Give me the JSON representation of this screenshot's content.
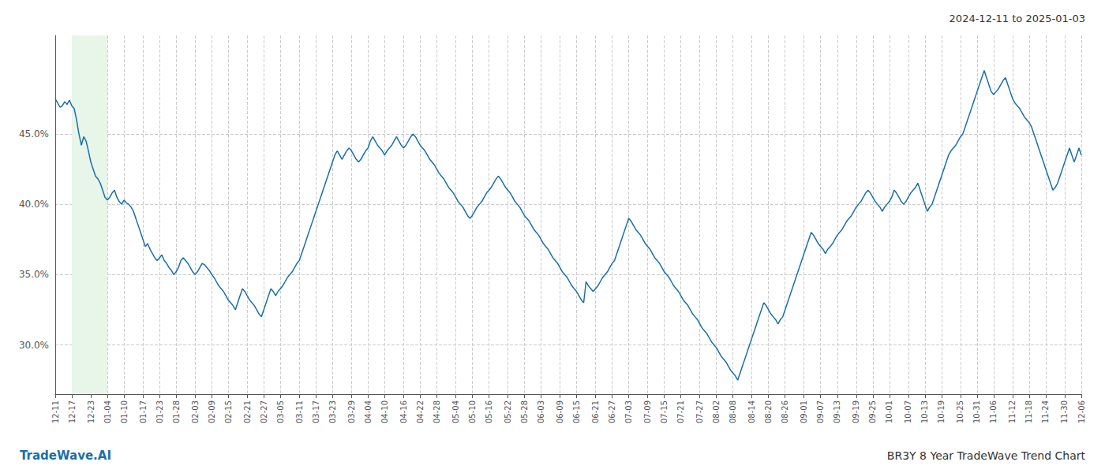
{
  "chart_data": {
    "type": "line",
    "title": "BR3Y 8 Year TradeWave Trend Chart",
    "subtitle": "2024-12-11 to 2025-01-03",
    "annotations": [
      {
        "text": "TradeWave.AI",
        "color": "#1a6fa8"
      }
    ],
    "color": "#1a6fa8",
    "highlight": {
      "from": "12-17",
      "to": "01-04",
      "color": "#e8f5e9"
    },
    "ylim": [
      26.5,
      52.0
    ],
    "yticks": [
      {
        "value": 30.0,
        "label": "30.0%"
      },
      {
        "value": 35.0,
        "label": "35.0%"
      },
      {
        "value": 40.0,
        "label": "40.0%"
      },
      {
        "value": 45.0,
        "label": "45.0%"
      }
    ],
    "grid": true,
    "categories": [
      "12-11",
      null,
      null,
      null,
      null,
      null,
      null,
      "12-17",
      null,
      null,
      null,
      null,
      null,
      null,
      null,
      "12-23",
      null,
      null,
      null,
      null,
      null,
      null,
      "01-04",
      null,
      null,
      null,
      null,
      null,
      null,
      "01-10",
      null,
      null,
      null,
      null,
      null,
      null,
      null,
      "01-17",
      null,
      null,
      null,
      null,
      null,
      null,
      "01-23",
      null,
      null,
      null,
      null,
      null,
      null,
      "01-28",
      null,
      null,
      null,
      null,
      null,
      null,
      null,
      "02-03",
      null,
      null,
      null,
      null,
      null,
      null,
      "02-09",
      null,
      null,
      null,
      null,
      null,
      null,
      "02-15",
      null,
      null,
      null,
      null,
      null,
      null,
      null,
      "02-21",
      null,
      null,
      null,
      null,
      null,
      null,
      "02-27",
      null,
      null,
      null,
      null,
      null,
      null,
      "03-05",
      null,
      null,
      null,
      null,
      null,
      null,
      null,
      "03-11",
      null,
      null,
      null,
      null,
      null,
      null,
      "03-17",
      null,
      null,
      null,
      null,
      null,
      null,
      "03-23",
      null,
      null,
      null,
      null,
      null,
      null,
      null,
      "03-29",
      null,
      null,
      null,
      null,
      null,
      null,
      "04-04",
      null,
      null,
      null,
      null,
      null,
      null,
      "04-10",
      null,
      null,
      null,
      null,
      null,
      null,
      null,
      "04-16",
      null,
      null,
      null,
      null,
      null,
      null,
      "04-22",
      null,
      null,
      null,
      null,
      null,
      null,
      "04-28",
      null,
      null,
      null,
      null,
      null,
      null,
      null,
      "05-04",
      null,
      null,
      null,
      null,
      null,
      null,
      "05-10",
      null,
      null,
      null,
      null,
      null,
      null,
      "05-16",
      null,
      null,
      null,
      null,
      null,
      null,
      null,
      "05-22",
      null,
      null,
      null,
      null,
      null,
      null,
      "05-28",
      null,
      null,
      null,
      null,
      null,
      null,
      "06-03",
      null,
      null,
      null,
      null,
      null,
      null,
      null,
      "06-09",
      null,
      null,
      null,
      null,
      null,
      null,
      "06-15",
      null,
      null,
      null,
      null,
      null,
      null,
      null,
      "06-21",
      null,
      null,
      null,
      null,
      null,
      null,
      "06-27",
      null,
      null,
      null,
      null,
      null,
      null,
      "07-03",
      null,
      null,
      null,
      null,
      null,
      null,
      null,
      "07-09",
      null,
      null,
      null,
      null,
      null,
      null,
      "07-15",
      null,
      null,
      null,
      null,
      null,
      null,
      "07-21",
      null,
      null,
      null,
      null,
      null,
      null,
      null,
      "07-27",
      null,
      null,
      null,
      null,
      null,
      null,
      "08-02",
      null,
      null,
      null,
      null,
      null,
      null,
      "08-08",
      null,
      null,
      null,
      null,
      null,
      null,
      null,
      "08-14",
      null,
      null,
      null,
      null,
      null,
      null,
      "08-20",
      null,
      null,
      null,
      null,
      null,
      null,
      "08-26",
      null,
      null,
      null,
      null,
      null,
      null,
      null,
      "09-01",
      null,
      null,
      null,
      null,
      null,
      null,
      "09-07",
      null,
      null,
      null,
      null,
      null,
      null,
      "09-13",
      null,
      null,
      null,
      null,
      null,
      null,
      null,
      "09-19",
      null,
      null,
      null,
      null,
      null,
      null,
      "09-25",
      null,
      null,
      null,
      null,
      null,
      null,
      "10-01",
      null,
      null,
      null,
      null,
      null,
      null,
      null,
      "10-07",
      null,
      null,
      null,
      null,
      null,
      null,
      "10-13",
      null,
      null,
      null,
      null,
      null,
      null,
      "10-19",
      null,
      null,
      null,
      null,
      null,
      null,
      null,
      "10-25",
      null,
      null,
      null,
      null,
      null,
      null,
      "10-31",
      null,
      null,
      null,
      null,
      null,
      null,
      "11-06",
      null,
      null,
      null,
      null,
      null,
      null,
      null,
      "11-12",
      null,
      null,
      null,
      null,
      null,
      null,
      "11-18",
      null,
      null,
      null,
      null,
      null,
      null,
      "11-24",
      null,
      null,
      null,
      null,
      null,
      null,
      null,
      "11-30",
      null,
      null,
      null,
      null,
      null,
      null,
      "12-06"
    ],
    "values": [
      47.5,
      47.2,
      46.9,
      47.0,
      47.3,
      47.1,
      47.4,
      47.0,
      46.8,
      46.0,
      45.0,
      44.2,
      44.8,
      44.5,
      43.8,
      43.0,
      42.5,
      42.0,
      41.8,
      41.5,
      41.0,
      40.5,
      40.3,
      40.5,
      40.8,
      41.0,
      40.5,
      40.2,
      40.0,
      40.3,
      40.1,
      40.0,
      39.8,
      39.5,
      39.0,
      38.5,
      38.0,
      37.5,
      37.0,
      37.2,
      36.8,
      36.5,
      36.2,
      36.0,
      36.2,
      36.4,
      36.0,
      35.8,
      35.5,
      35.3,
      35.0,
      35.2,
      35.5,
      36.0,
      36.2,
      36.0,
      35.8,
      35.5,
      35.2,
      35.0,
      35.2,
      35.5,
      35.8,
      35.7,
      35.5,
      35.3,
      35.0,
      34.8,
      34.5,
      34.2,
      34.0,
      33.8,
      33.5,
      33.2,
      33.0,
      32.8,
      32.5,
      33.0,
      33.5,
      34.0,
      33.8,
      33.5,
      33.2,
      33.0,
      32.8,
      32.5,
      32.2,
      32.0,
      32.5,
      33.0,
      33.5,
      34.0,
      33.8,
      33.5,
      33.8,
      34.0,
      34.2,
      34.5,
      34.8,
      35.0,
      35.2,
      35.5,
      35.8,
      36.0,
      36.5,
      37.0,
      37.5,
      38.0,
      38.5,
      39.0,
      39.5,
      40.0,
      40.5,
      41.0,
      41.5,
      42.0,
      42.5,
      43.0,
      43.5,
      43.8,
      43.5,
      43.2,
      43.5,
      43.8,
      44.0,
      43.8,
      43.5,
      43.2,
      43.0,
      43.2,
      43.5,
      43.8,
      44.0,
      44.5,
      44.8,
      44.5,
      44.2,
      44.0,
      43.8,
      43.5,
      43.8,
      44.0,
      44.2,
      44.5,
      44.8,
      44.5,
      44.2,
      44.0,
      44.2,
      44.5,
      44.8,
      45.0,
      44.8,
      44.5,
      44.2,
      44.0,
      43.8,
      43.5,
      43.2,
      43.0,
      42.8,
      42.5,
      42.2,
      42.0,
      41.8,
      41.5,
      41.2,
      41.0,
      40.8,
      40.5,
      40.2,
      40.0,
      39.8,
      39.5,
      39.2,
      39.0,
      39.2,
      39.5,
      39.8,
      40.0,
      40.2,
      40.5,
      40.8,
      41.0,
      41.2,
      41.5,
      41.8,
      42.0,
      41.8,
      41.5,
      41.2,
      41.0,
      40.8,
      40.5,
      40.2,
      40.0,
      39.8,
      39.5,
      39.2,
      39.0,
      38.8,
      38.5,
      38.2,
      38.0,
      37.8,
      37.5,
      37.2,
      37.0,
      36.8,
      36.5,
      36.2,
      36.0,
      35.8,
      35.5,
      35.2,
      35.0,
      34.8,
      34.5,
      34.2,
      34.0,
      33.8,
      33.5,
      33.2,
      33.0,
      34.5,
      34.2,
      34.0,
      33.8,
      34.0,
      34.2,
      34.5,
      34.8,
      35.0,
      35.2,
      35.5,
      35.8,
      36.0,
      36.5,
      37.0,
      37.5,
      38.0,
      38.5,
      39.0,
      38.8,
      38.5,
      38.2,
      38.0,
      37.8,
      37.5,
      37.2,
      37.0,
      36.8,
      36.5,
      36.2,
      36.0,
      35.8,
      35.5,
      35.2,
      35.0,
      34.8,
      34.5,
      34.2,
      34.0,
      33.8,
      33.5,
      33.2,
      33.0,
      32.8,
      32.5,
      32.2,
      32.0,
      31.8,
      31.5,
      31.2,
      31.0,
      30.8,
      30.5,
      30.2,
      30.0,
      29.8,
      29.5,
      29.2,
      29.0,
      28.8,
      28.5,
      28.2,
      28.0,
      27.8,
      27.5,
      28.0,
      28.5,
      29.0,
      29.5,
      30.0,
      30.5,
      31.0,
      31.5,
      32.0,
      32.5,
      33.0,
      32.8,
      32.5,
      32.2,
      32.0,
      31.8,
      31.5,
      31.8,
      32.0,
      32.5,
      33.0,
      33.5,
      34.0,
      34.5,
      35.0,
      35.5,
      36.0,
      36.5,
      37.0,
      37.5,
      38.0,
      37.8,
      37.5,
      37.2,
      37.0,
      36.8,
      36.5,
      36.8,
      37.0,
      37.2,
      37.5,
      37.8,
      38.0,
      38.2,
      38.5,
      38.8,
      39.0,
      39.2,
      39.5,
      39.8,
      40.0,
      40.2,
      40.5,
      40.8,
      41.0,
      40.8,
      40.5,
      40.2,
      40.0,
      39.8,
      39.5,
      39.8,
      40.0,
      40.2,
      40.5,
      41.0,
      40.8,
      40.5,
      40.2,
      40.0,
      40.2,
      40.5,
      40.8,
      41.0,
      41.2,
      41.5,
      41.0,
      40.5,
      40.0,
      39.5,
      39.8,
      40.0,
      40.5,
      41.0,
      41.5,
      42.0,
      42.5,
      43.0,
      43.5,
      43.8,
      44.0,
      44.2,
      44.5,
      44.8,
      45.0,
      45.5,
      46.0,
      46.5,
      47.0,
      47.5,
      48.0,
      48.5,
      49.0,
      49.5,
      49.0,
      48.5,
      48.0,
      47.8,
      48.0,
      48.2,
      48.5,
      48.8,
      49.0,
      48.5,
      48.0,
      47.5,
      47.2,
      47.0,
      46.8,
      46.5,
      46.2,
      46.0,
      45.8,
      45.5,
      45.0,
      44.5,
      44.0,
      43.5,
      43.0,
      42.5,
      42.0,
      41.5,
      41.0,
      41.2,
      41.5,
      42.0,
      42.5,
      43.0,
      43.5,
      44.0,
      43.5,
      43.0,
      43.5,
      44.0,
      43.5
    ]
  }
}
